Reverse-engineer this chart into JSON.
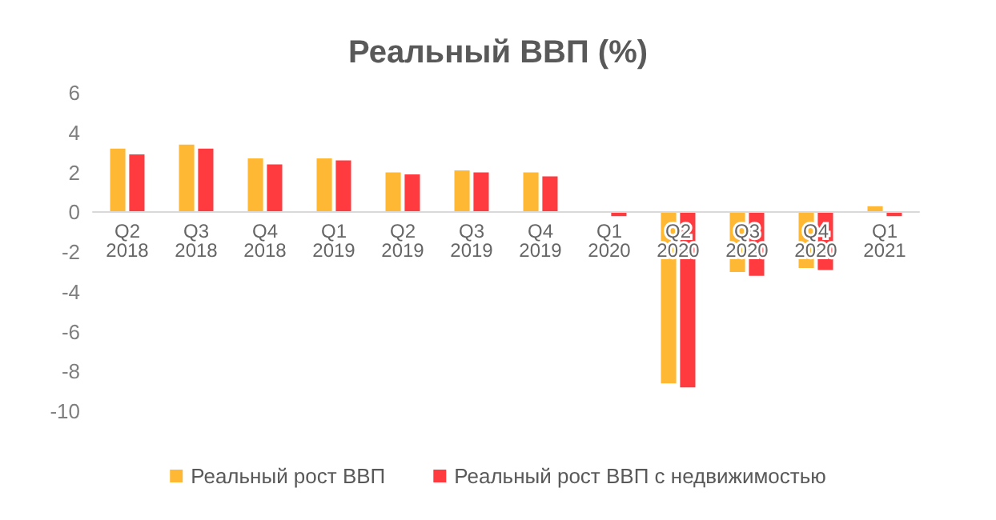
{
  "chart_data": {
    "type": "bar",
    "title": "Реальный ВВП (%)",
    "categories": [
      "Q2 2018",
      "Q3 2018",
      "Q4 2018",
      "Q1 2019",
      "Q2 2019",
      "Q3 2019",
      "Q4 2019",
      "Q1 2020",
      "Q2 2020",
      "Q3 2020",
      "Q4 2020",
      "Q1 2021"
    ],
    "series": [
      {
        "name": "Реальный рост ВВП",
        "color": "#ffb833",
        "values": [
          3.2,
          3.4,
          2.7,
          2.7,
          2.0,
          2.1,
          2.0,
          0,
          -8.6,
          -3.0,
          -2.8,
          0.3
        ]
      },
      {
        "name": "Реальный рост ВВП с недвижимостью",
        "color": "#ff3b3f",
        "values": [
          2.9,
          3.2,
          2.4,
          2.6,
          1.9,
          2.0,
          1.8,
          -0.2,
          -8.8,
          -3.2,
          -2.9,
          -0.2
        ]
      }
    ],
    "ylim": [
      -10,
      6
    ],
    "yticks": [
      -10,
      -8,
      -6,
      -4,
      -2,
      0,
      2,
      4,
      6
    ],
    "grid": false,
    "legend": "bottom"
  }
}
